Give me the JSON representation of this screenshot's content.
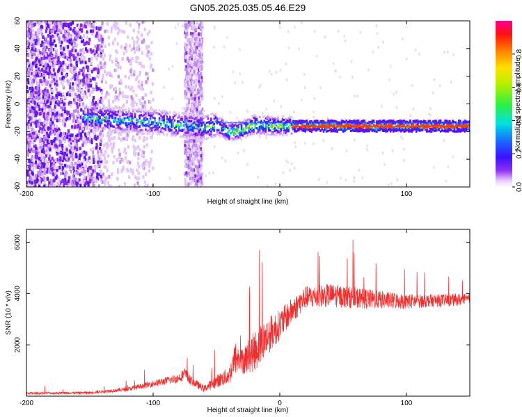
{
  "title": "GN05.2025.035.05.46.E29",
  "chart_data": [
    {
      "type": "heatmap",
      "xlabel": "Height of straight line (km)",
      "ylabel": "Frequency (Hz)",
      "xlim": [
        -200,
        150
      ],
      "ylim": [
        -60,
        60
      ],
      "x_ticks": [
        -200,
        -100,
        0,
        100
      ],
      "y_ticks": [
        -60,
        -40,
        -20,
        0,
        20,
        40,
        60
      ],
      "signal_band": {
        "description_points_x": [
          -150,
          -120,
          -100,
          -80,
          -60,
          -50,
          -40,
          -30,
          -20,
          0,
          50,
          100,
          150
        ],
        "center_freq": [
          -10,
          -12,
          -13,
          -15,
          -17,
          -15,
          -20,
          -19,
          -15,
          -16,
          -16,
          -16,
          -16
        ]
      },
      "grid": false,
      "colorbar": {
        "label": "Normalized spectral amplitude",
        "range": [
          0,
          1
        ],
        "ticks": [
          "0.0",
          "0.2",
          "0.4",
          "0.6",
          "0.8"
        ],
        "tick_values": [
          0,
          0.2,
          0.4,
          0.6,
          0.8
        ]
      }
    },
    {
      "type": "line",
      "xlabel": "Height of straight line (km)",
      "ylabel": "SNR (10 * v/v)",
      "xlim": [
        -200,
        150
      ],
      "ylim": [
        0,
        6500
      ],
      "x_ticks": [
        -200,
        -100,
        0,
        100
      ],
      "y_ticks": [
        2000,
        4000,
        6000
      ],
      "series_color": "#f03030",
      "envelope": {
        "x": [
          -200,
          -150,
          -120,
          -100,
          -90,
          -80,
          -75,
          -70,
          -60,
          -50,
          -40,
          -35,
          -30,
          -20,
          -10,
          0,
          10,
          20,
          40,
          60,
          80,
          100,
          120,
          150
        ],
        "base": [
          100,
          120,
          250,
          450,
          550,
          650,
          800,
          550,
          250,
          500,
          700,
          1300,
          1200,
          1500,
          2100,
          2600,
          3200,
          3700,
          3800,
          3700,
          3650,
          3600,
          3650,
          3700
        ],
        "spread": [
          80,
          100,
          150,
          250,
          300,
          350,
          500,
          350,
          250,
          500,
          700,
          1300,
          1000,
          1600,
          1500,
          1200,
          1000,
          900,
          900,
          850,
          700,
          600,
          500,
          450
        ]
      }
    }
  ]
}
